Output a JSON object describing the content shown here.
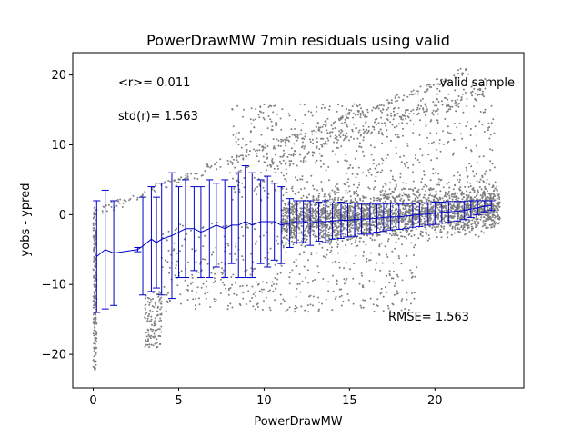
{
  "chart_data": {
    "type": "scatter",
    "title": "PowerDrawMW 7min residuals using valid",
    "xlabel": "PowerDrawMW",
    "ylabel": "yobs - ypred",
    "xlim": [
      -1.2,
      25.2
    ],
    "ylim": [
      -24.8,
      23.2
    ],
    "xticks": [
      0,
      5,
      10,
      15,
      20
    ],
    "yticks": [
      -20,
      -10,
      0,
      10,
      20
    ],
    "grid": false,
    "annotations": {
      "mean_r": "<r>= 0.011",
      "std_r": "std(r)= 1.563",
      "sample": "valid sample",
      "rmse": "RMSE= 1.563"
    },
    "colors": {
      "scatter": "#808080",
      "errorbars": "#0000cc"
    },
    "scatter_bands": [
      {
        "name": "upper-diagonal",
        "x": [
          0.5,
          22
        ],
        "slope": 0.92,
        "intercept": 0.3,
        "spread": 0.35,
        "count": 260
      },
      {
        "name": "lower-diagonal",
        "x": [
          10,
          23
        ],
        "slope": 0.85,
        "intercept": -1.4,
        "spread": 0.8,
        "count": 240
      },
      {
        "name": "dense-core",
        "x": [
          11,
          23.8
        ],
        "y_center": 0,
        "spread": 1.6,
        "count": 2600
      },
      {
        "name": "scattered-upper",
        "x": [
          8,
          23.5
        ],
        "y": [
          2,
          16
        ],
        "count": 600
      },
      {
        "name": "scattered-lower",
        "x": [
          4,
          19
        ],
        "y": [
          -14,
          -1
        ],
        "count": 500
      },
      {
        "name": "left-column",
        "x": [
          0,
          0.2
        ],
        "y": [
          -22.5,
          1
        ],
        "count": 220
      },
      {
        "name": "low-cluster",
        "x": [
          3,
          4
        ],
        "y": [
          -19,
          -11
        ],
        "count": 120
      }
    ],
    "errorbars": {
      "x": [
        0.2,
        0.7,
        1.2,
        2.6,
        2.9,
        3.4,
        3.7,
        4.0,
        4.6,
        5.0,
        5.4,
        5.9,
        6.3,
        6.8,
        7.2,
        7.7,
        8.1,
        8.5,
        8.9,
        9.3,
        9.8,
        10.2,
        10.6,
        11.0,
        11.5,
        11.9,
        12.3,
        12.7,
        13.2,
        13.6,
        14.0,
        14.5,
        14.9,
        15.3,
        15.7,
        16.2,
        16.6,
        17.0,
        17.4,
        17.9,
        18.3,
        18.7,
        19.1,
        19.6,
        20.0,
        20.4,
        20.8,
        21.3,
        21.7,
        22.1,
        22.5,
        22.9,
        23.3
      ],
      "y": [
        -6.0,
        -5.0,
        -5.5,
        -5.0,
        -4.5,
        -3.5,
        -4.0,
        -3.5,
        -3.0,
        -2.5,
        -2.0,
        -2.0,
        -2.5,
        -2.0,
        -1.5,
        -2.0,
        -1.5,
        -1.5,
        -1.0,
        -1.5,
        -1.0,
        -1.0,
        -1.0,
        -1.5,
        -1.2,
        -1.0,
        -1.0,
        -1.2,
        -1.0,
        -1.0,
        -0.9,
        -0.8,
        -0.8,
        -0.7,
        -0.6,
        -0.6,
        -0.5,
        -0.4,
        -0.3,
        -0.3,
        -0.2,
        -0.1,
        0.0,
        0.1,
        0.2,
        0.3,
        0.4,
        0.5,
        0.6,
        0.8,
        1.0,
        1.2,
        1.3
      ],
      "err": [
        8.0,
        8.5,
        7.5,
        0.3,
        7.0,
        7.5,
        6.5,
        8.0,
        9.0,
        6.5,
        7.0,
        6.0,
        6.5,
        7.0,
        6.0,
        7.0,
        5.5,
        7.5,
        8.0,
        7.5,
        6.0,
        6.5,
        5.5,
        5.5,
        3.5,
        3.0,
        3.0,
        3.2,
        2.8,
        3.0,
        2.6,
        2.6,
        2.4,
        2.4,
        2.2,
        2.2,
        2.0,
        2.0,
        1.9,
        1.8,
        1.8,
        1.7,
        1.7,
        1.6,
        1.6,
        1.5,
        1.5,
        1.4,
        1.3,
        1.2,
        1.0,
        0.8,
        0.7
      ]
    }
  }
}
